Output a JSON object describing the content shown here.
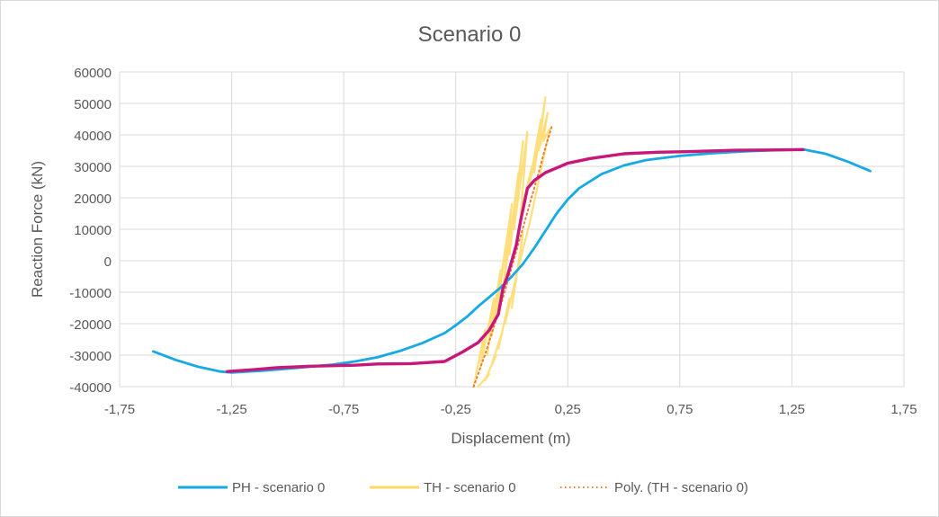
{
  "chart_data": {
    "type": "scatter",
    "title": "Scenario 0",
    "xlabel": "Displacement (m)",
    "ylabel": "Reaction Force (kN)",
    "xlim": [
      -1.75,
      1.75
    ],
    "ylim": [
      -40000,
      60000
    ],
    "x_ticks": [
      -1.75,
      -1.25,
      -0.75,
      -0.25,
      0.25,
      0.75,
      1.25,
      1.75
    ],
    "x_tick_labels": [
      "-1,75",
      "-1,25",
      "-0,75",
      "-0,25",
      "0,25",
      "0,75",
      "1,25",
      "1,75"
    ],
    "y_ticks": [
      -40000,
      -30000,
      -20000,
      -10000,
      0,
      10000,
      20000,
      30000,
      40000,
      50000,
      60000
    ],
    "y_tick_labels": [
      "-40000",
      "-30000",
      "-20000",
      "-10000",
      "0",
      "10000",
      "20000",
      "30000",
      "40000",
      "50000",
      "60000"
    ],
    "grid": true,
    "legend_position": "bottom",
    "series": [
      {
        "name": "PH - scenario 0",
        "style": "line",
        "color": "#16a9e3",
        "points": [
          [
            -1.6,
            -28800
          ],
          [
            -1.5,
            -31500
          ],
          [
            -1.4,
            -33700
          ],
          [
            -1.3,
            -35200
          ],
          [
            -1.25,
            -35500
          ],
          [
            -1.1,
            -34900
          ],
          [
            -0.95,
            -34000
          ],
          [
            -0.8,
            -33000
          ],
          [
            -0.7,
            -32000
          ],
          [
            -0.6,
            -30700
          ],
          [
            -0.5,
            -28700
          ],
          [
            -0.4,
            -26200
          ],
          [
            -0.3,
            -23000
          ],
          [
            -0.25,
            -20500
          ],
          [
            -0.2,
            -17800
          ],
          [
            -0.15,
            -14500
          ],
          [
            -0.1,
            -11500
          ],
          [
            -0.05,
            -8500
          ],
          [
            0.0,
            -5000
          ],
          [
            0.05,
            -1000
          ],
          [
            0.1,
            4000
          ],
          [
            0.15,
            9500
          ],
          [
            0.2,
            15000
          ],
          [
            0.25,
            19500
          ],
          [
            0.3,
            23000
          ],
          [
            0.4,
            27500
          ],
          [
            0.5,
            30300
          ],
          [
            0.6,
            32000
          ],
          [
            0.75,
            33300
          ],
          [
            0.9,
            34200
          ],
          [
            1.05,
            34800
          ],
          [
            1.2,
            35200
          ],
          [
            1.3,
            35400
          ],
          [
            1.4,
            34000
          ],
          [
            1.5,
            31500
          ],
          [
            1.6,
            28500
          ]
        ]
      },
      {
        "name": "TH - scenario 0",
        "style": "noisy-line",
        "color": "#ffd966",
        "points": [
          [
            -0.17,
            -40000
          ],
          [
            -0.12,
            -22000
          ],
          [
            -0.14,
            -34000
          ],
          [
            -0.08,
            -12000
          ],
          [
            -0.11,
            -30000
          ],
          [
            -0.05,
            -3000
          ],
          [
            -0.09,
            -24000
          ],
          [
            -0.02,
            8000
          ],
          [
            -0.07,
            -18000
          ],
          [
            0.0,
            18000
          ],
          [
            -0.04,
            -10000
          ],
          [
            0.03,
            28000
          ],
          [
            -0.01,
            2000
          ],
          [
            0.05,
            38000
          ],
          [
            0.01,
            10000
          ],
          [
            0.07,
            41000
          ],
          [
            0.04,
            15000
          ],
          [
            0.09,
            30000
          ],
          [
            0.06,
            20000
          ],
          [
            0.11,
            33000
          ],
          [
            0.08,
            25000
          ],
          [
            0.13,
            45000
          ],
          [
            0.1,
            28000
          ],
          [
            0.15,
            52000
          ],
          [
            0.12,
            35000
          ],
          [
            0.16,
            47000
          ],
          [
            0.14,
            38000
          ],
          [
            0.17,
            42000
          ],
          [
            0.08,
            12000
          ],
          [
            0.03,
            -2000
          ],
          [
            0.05,
            9000
          ],
          [
            0.0,
            -15000
          ],
          [
            0.02,
            -5000
          ],
          [
            -0.03,
            -20000
          ],
          [
            -0.01,
            -12000
          ],
          [
            -0.06,
            -28000
          ],
          [
            -0.04,
            -22000
          ],
          [
            -0.09,
            -33000
          ],
          [
            -0.07,
            -30000
          ],
          [
            -0.12,
            -38000
          ],
          [
            -0.1,
            -36000
          ],
          [
            -0.15,
            -40000
          ]
        ]
      },
      {
        "name": "Poly. (TH - scenario 0)",
        "style": "dotted-line",
        "color": "#ed7d31",
        "points": [
          [
            -0.17,
            -40000
          ],
          [
            -0.12,
            -30000
          ],
          [
            -0.08,
            -21000
          ],
          [
            -0.04,
            -12000
          ],
          [
            0.0,
            -2000
          ],
          [
            0.04,
            8000
          ],
          [
            0.08,
            18000
          ],
          [
            0.12,
            28000
          ],
          [
            0.15,
            36000
          ],
          [
            0.18,
            43000
          ]
        ]
      },
      {
        "name": "",
        "style": "line",
        "color": "#c8177b",
        "points": [
          [
            -1.27,
            -35200
          ],
          [
            -1.15,
            -34600
          ],
          [
            -1.05,
            -34000
          ],
          [
            -0.9,
            -33500
          ],
          [
            -0.7,
            -33200
          ],
          [
            -0.6,
            -32800
          ],
          [
            -0.45,
            -32700
          ],
          [
            -0.3,
            -32000
          ],
          [
            -0.22,
            -29000
          ],
          [
            -0.15,
            -26000
          ],
          [
            -0.1,
            -22000
          ],
          [
            -0.06,
            -17000
          ],
          [
            -0.04,
            -9000
          ],
          [
            -0.02,
            -5000
          ],
          [
            0.0,
            0
          ],
          [
            0.02,
            5000
          ],
          [
            0.04,
            13000
          ],
          [
            0.07,
            23000
          ],
          [
            0.1,
            25500
          ],
          [
            0.15,
            28000
          ],
          [
            0.2,
            29500
          ],
          [
            0.25,
            31000
          ],
          [
            0.35,
            32500
          ],
          [
            0.5,
            34000
          ],
          [
            0.65,
            34500
          ],
          [
            0.8,
            34700
          ],
          [
            1.0,
            35100
          ],
          [
            1.15,
            35200
          ],
          [
            1.3,
            35300
          ]
        ]
      }
    ],
    "legend_entries": [
      "PH - scenario 0",
      "TH - scenario 0",
      "Poly. (TH - scenario 0)"
    ]
  }
}
